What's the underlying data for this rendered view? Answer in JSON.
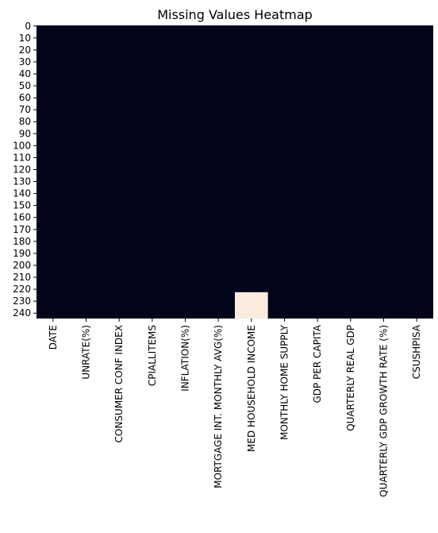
{
  "chart_data": {
    "type": "heatmap",
    "title": "Missing Values Heatmap",
    "xlabel": "",
    "ylabel": "",
    "columns": [
      "DATE",
      "UNRATE(%)",
      "CONSUMER CONF INDEX",
      "CPIALLITEMS",
      "INFLATION(%)",
      "MORTGAGE INT. MONTHLY AVG(%)",
      "MED HOUSEHOLD INCOME",
      "MONTHLY HOME SUPPLY",
      "GDP PER CAPITA",
      "QUARTERLY REAL GDP",
      "QUARTERLY GDP GROWTH RATE (%)",
      "CSUSHPISA"
    ],
    "y_ticks": [
      0,
      10,
      20,
      30,
      40,
      50,
      60,
      70,
      80,
      90,
      100,
      110,
      120,
      130,
      140,
      150,
      160,
      170,
      180,
      190,
      200,
      210,
      220,
      230,
      240
    ],
    "row_count": 245,
    "missing_ranges": [
      {
        "column": "MED HOUSEHOLD INCOME",
        "start_row": 223,
        "end_row": 244
      }
    ],
    "colors": {
      "present": "#03051a",
      "missing": "#faebdd"
    },
    "colorbar": false
  }
}
